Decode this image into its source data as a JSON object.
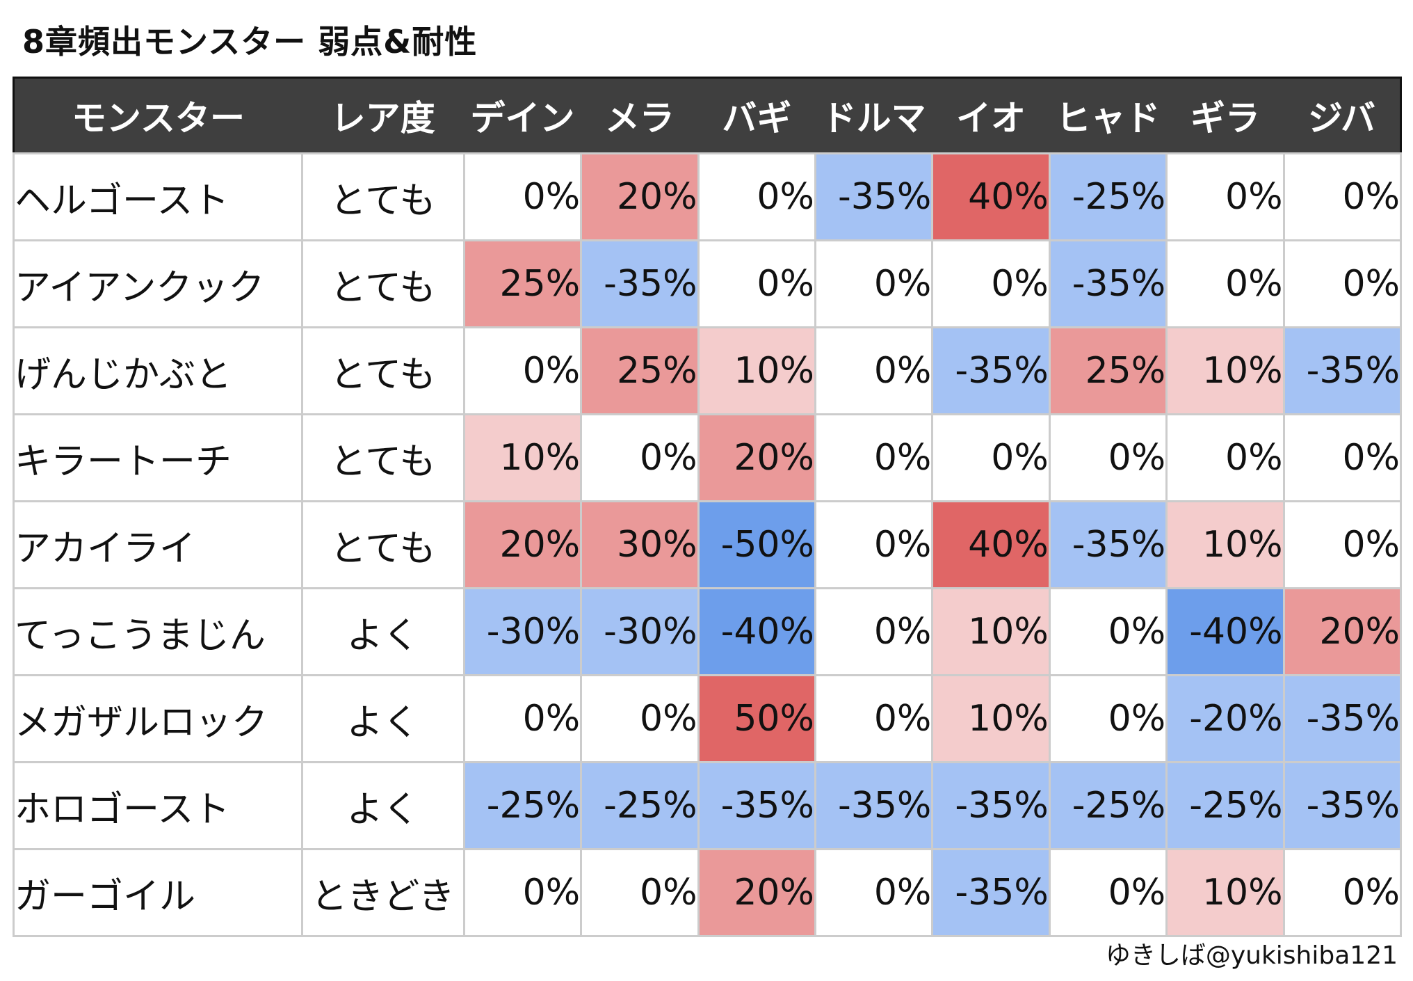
{
  "title": "8章頻出モンスター 弱点&耐性",
  "headers": [
    "モンスター",
    "レア度",
    "デイン",
    "メラ",
    "バギ",
    "ドルマ",
    "イオ",
    "ヒャド",
    "ギラ",
    "ジバ"
  ],
  "rows": [
    {
      "name": "ヘルゴースト",
      "rarity": "とても",
      "values": [
        "0%",
        "20%",
        "0%",
        "-35%",
        "40%",
        "-25%",
        "0%",
        "0%"
      ]
    },
    {
      "name": "アイアンクック",
      "rarity": "とても",
      "values": [
        "25%",
        "-35%",
        "0%",
        "0%",
        "0%",
        "-35%",
        "0%",
        "0%"
      ]
    },
    {
      "name": "げんじかぶと",
      "rarity": "とても",
      "values": [
        "0%",
        "25%",
        "10%",
        "0%",
        "-35%",
        "25%",
        "10%",
        "-35%"
      ]
    },
    {
      "name": "キラートーチ",
      "rarity": "とても",
      "values": [
        "10%",
        "0%",
        "20%",
        "0%",
        "0%",
        "0%",
        "0%",
        "0%"
      ]
    },
    {
      "name": "アカイライ",
      "rarity": "とても",
      "values": [
        "20%",
        "30%",
        "-50%",
        "0%",
        "40%",
        "-35%",
        "10%",
        "0%"
      ]
    },
    {
      "name": "てっこうまじん",
      "rarity": "よく",
      "values": [
        "-30%",
        "-30%",
        "-40%",
        "0%",
        "10%",
        "0%",
        "-40%",
        "20%"
      ]
    },
    {
      "name": "メガザルロック",
      "rarity": "よく",
      "values": [
        "0%",
        "0%",
        "50%",
        "0%",
        "10%",
        "0%",
        "-20%",
        "-35%"
      ]
    },
    {
      "name": "ホロゴースト",
      "rarity": "よく",
      "values": [
        "-25%",
        "-25%",
        "-35%",
        "-35%",
        "-35%",
        "-25%",
        "-25%",
        "-35%"
      ]
    },
    {
      "name": "ガーゴイル",
      "rarity": "ときどき",
      "values": [
        "0%",
        "0%",
        "20%",
        "0%",
        "-35%",
        "0%",
        "10%",
        "0%"
      ]
    }
  ],
  "colors": {
    "header_bg": "#3f3f3f",
    "neutral": "#ffffff",
    "weak_10": "#f4cccc",
    "weak_20_30": "#ea9999",
    "weak_40_50": "#e06666",
    "resist_20_35": "#a4c2f4",
    "resist_40_50": "#6d9eeb"
  },
  "footer": "ゆきしば@yukishiba121"
}
